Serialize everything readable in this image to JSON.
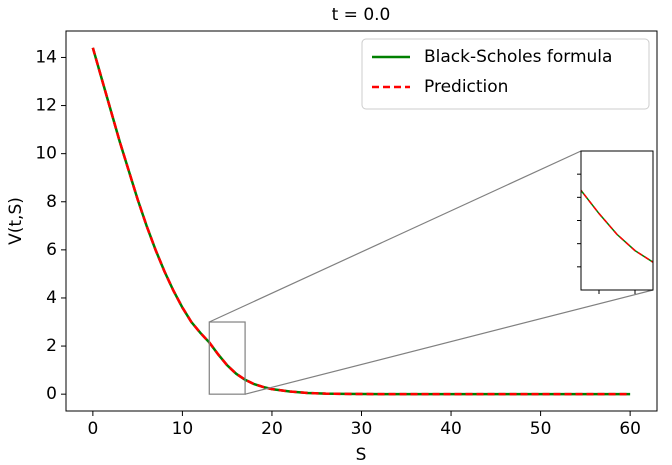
{
  "chart_data": {
    "type": "line",
    "title": "t = 0.0",
    "x_label": "S",
    "y_label": "V(t,S)",
    "x": [
      0,
      1,
      2,
      3,
      4,
      5,
      6,
      7,
      8,
      9,
      10,
      11,
      12,
      13,
      14,
      15,
      16,
      17,
      18,
      19,
      20,
      22,
      24,
      26,
      28,
      30,
      35,
      40,
      45,
      50,
      55,
      60
    ],
    "series": [
      {
        "name": "Black-Scholes formula",
        "color": "#008000",
        "style": "solid",
        "values": [
          14.4,
          13.1,
          11.8,
          10.5,
          9.3,
          8.1,
          7.0,
          6.0,
          5.1,
          4.3,
          3.6,
          3.0,
          2.55,
          2.15,
          1.65,
          1.2,
          0.85,
          0.6,
          0.42,
          0.3,
          0.21,
          0.11,
          0.05,
          0.02,
          0.01,
          0.005,
          0,
          0,
          0,
          0,
          0,
          0
        ]
      },
      {
        "name": "Prediction",
        "color": "#ff0000",
        "style": "dashed",
        "values": [
          14.4,
          13.1,
          11.8,
          10.5,
          9.3,
          8.1,
          7.0,
          6.0,
          5.1,
          4.3,
          3.6,
          3.0,
          2.55,
          2.15,
          1.65,
          1.2,
          0.85,
          0.6,
          0.42,
          0.3,
          0.21,
          0.11,
          0.05,
          0.02,
          0.01,
          0.005,
          0,
          0,
          0,
          0,
          0,
          0
        ]
      }
    ],
    "xlim": [
      -3,
      63
    ],
    "ylim": [
      -0.7,
      15.1
    ],
    "xticks": [
      0,
      10,
      20,
      30,
      40,
      50,
      60
    ],
    "yticks": [
      0,
      2,
      4,
      6,
      8,
      10,
      12,
      14
    ],
    "legend": "upper right",
    "inset": {
      "xlim": [
        13,
        17
      ],
      "ylim": [
        0,
        3
      ],
      "xticks": [
        14,
        16
      ],
      "yticks": [
        0.5,
        1,
        1.5,
        2,
        2.5
      ]
    }
  }
}
